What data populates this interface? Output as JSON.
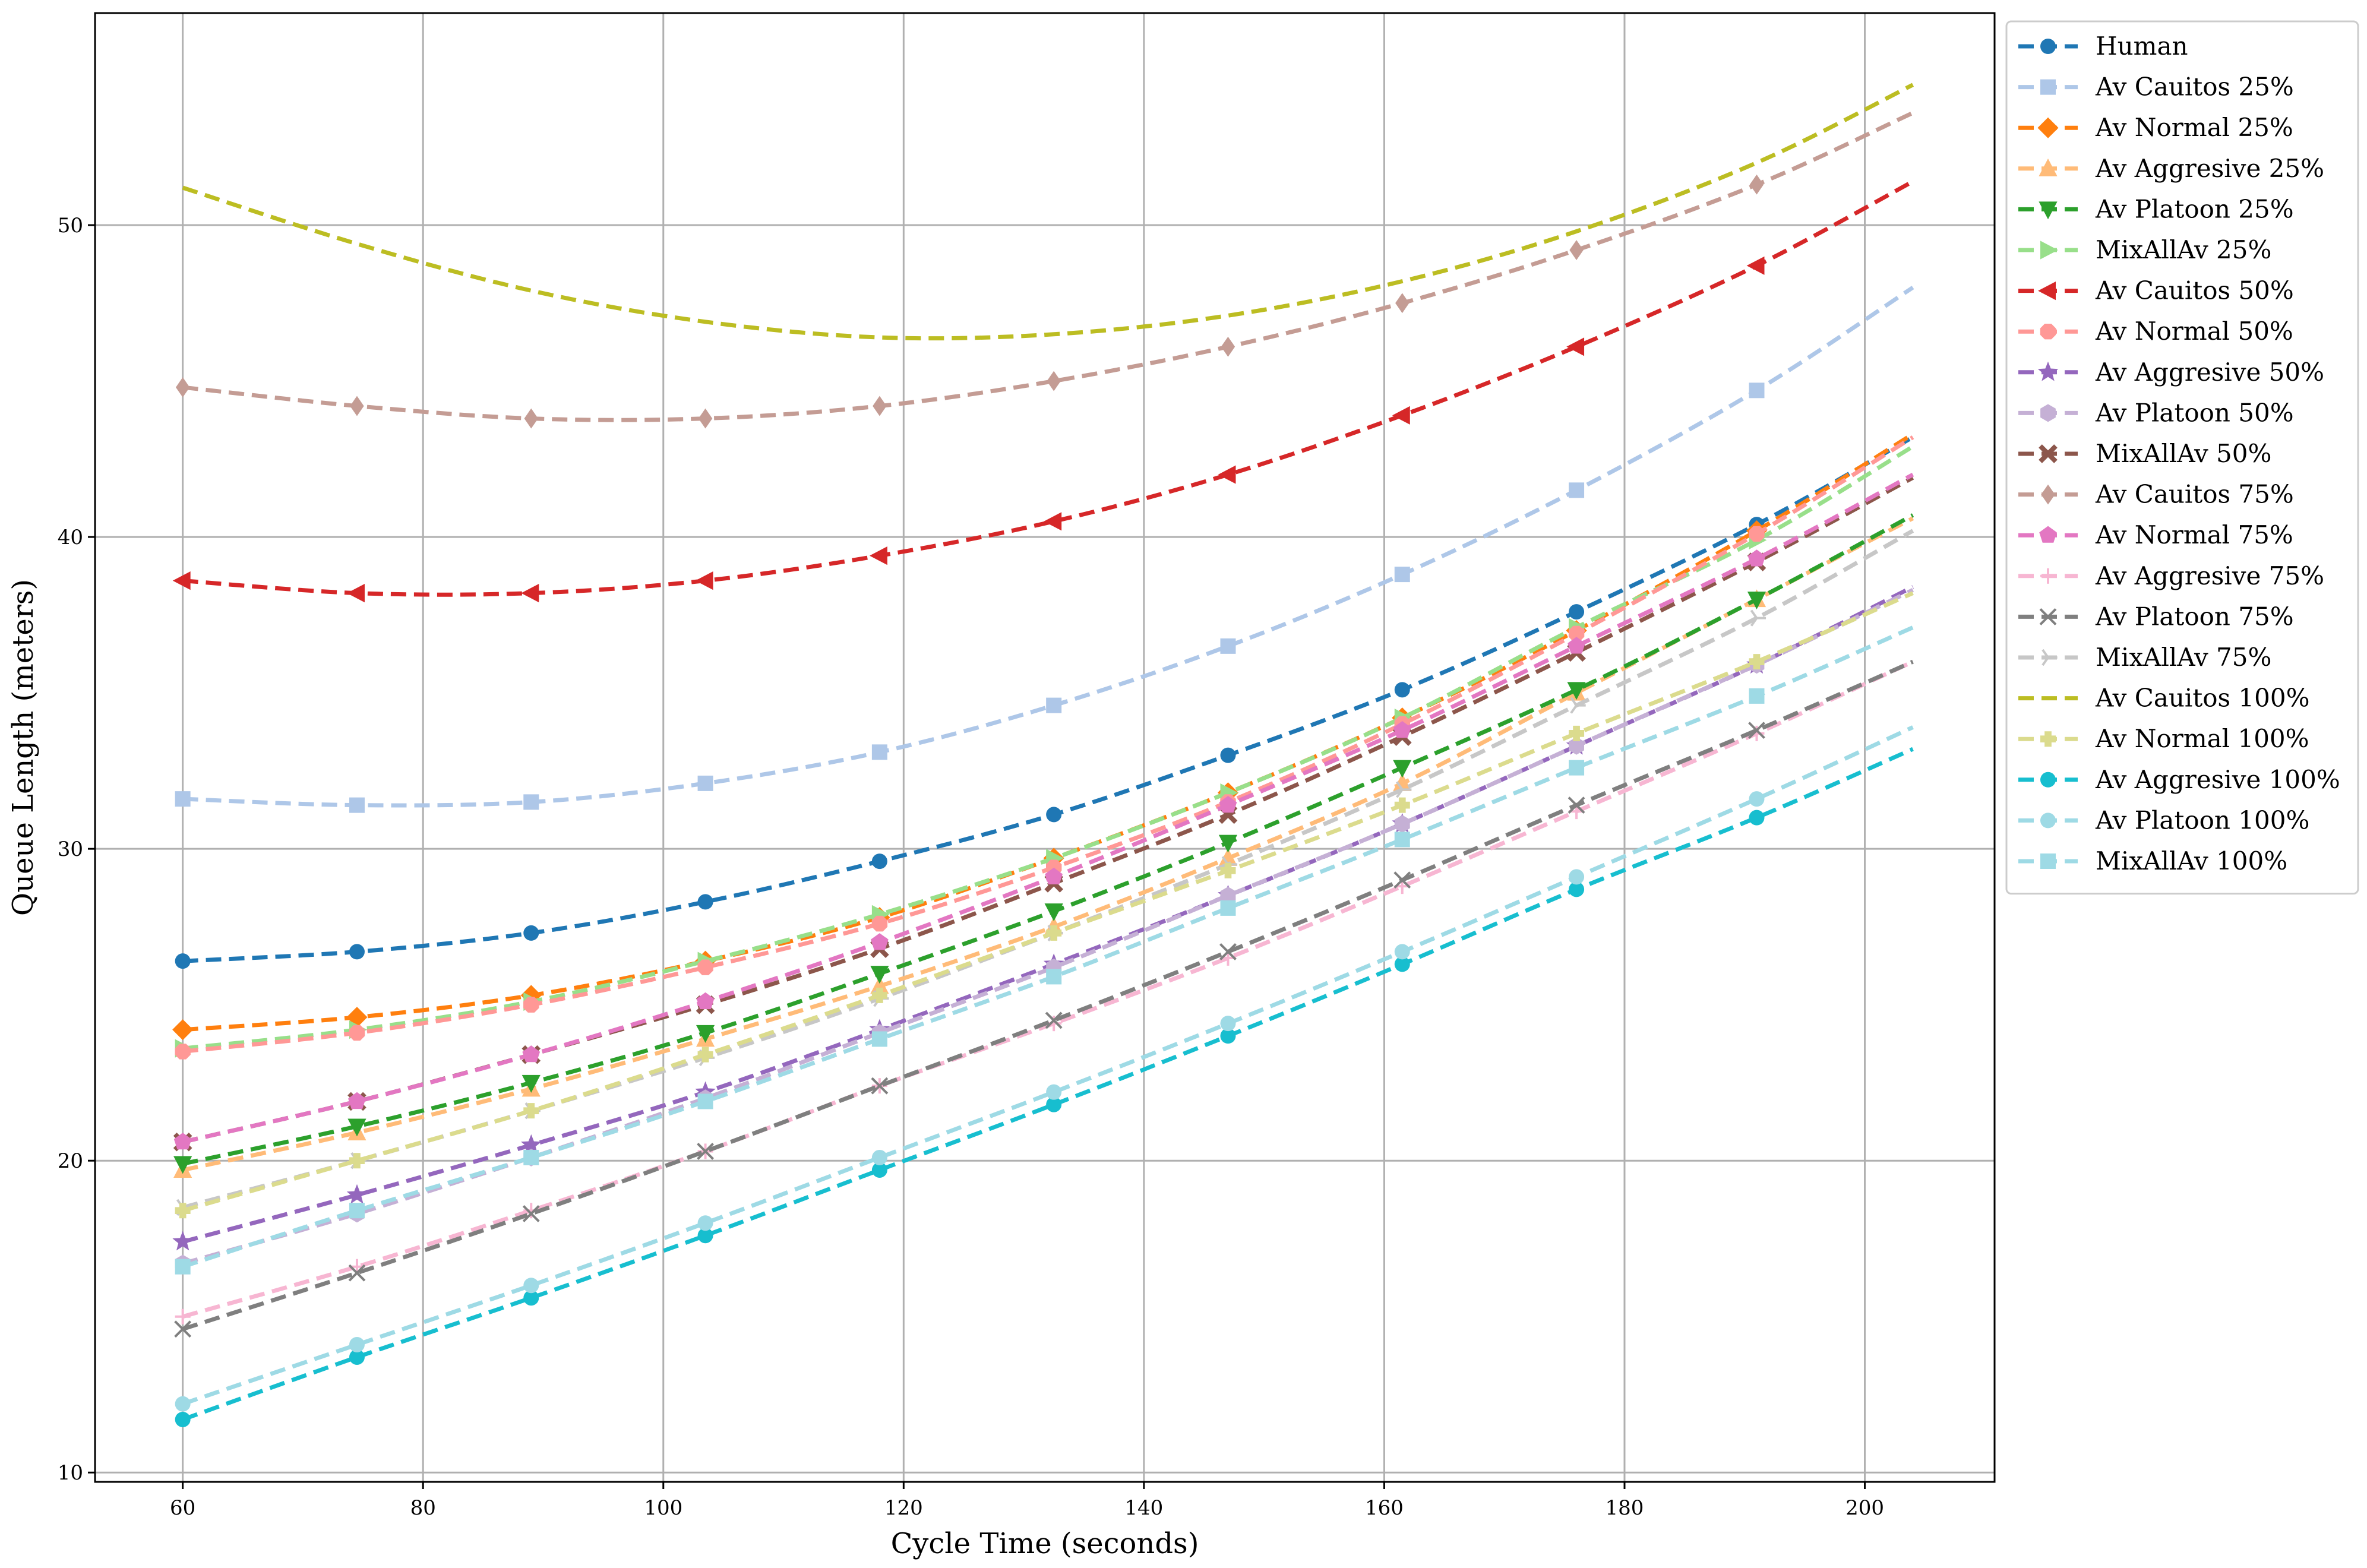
{
  "chart_data": {
    "type": "line",
    "xlabel": "Cycle Time (seconds)",
    "ylabel": "Queue Length (meters)",
    "xlim": [
      52.7,
      210.8
    ],
    "ylim": [
      9.7,
      56.8
    ],
    "xticks": [
      60,
      80,
      100,
      120,
      140,
      160,
      180,
      200
    ],
    "yticks": [
      10,
      20,
      30,
      40,
      50
    ],
    "grid": true,
    "legend_position": "outside-right",
    "x": [
      60,
      74.5,
      89,
      103.5,
      118,
      132.5,
      147,
      161.5,
      176,
      191,
      204
    ],
    "series": [
      {
        "name": "Human",
        "color": "#1f77b4",
        "marker": "circle",
        "values": [
          26.4,
          26.7,
          27.3,
          28.3,
          29.6,
          31.1,
          33.0,
          35.1,
          37.6,
          40.4,
          43.2
        ]
      },
      {
        "name": "Av Cauitos 25%",
        "color": "#aec7e8",
        "marker": "square",
        "values": [
          31.6,
          31.4,
          31.5,
          32.1,
          33.1,
          34.6,
          36.5,
          38.8,
          41.5,
          44.7,
          48.0
        ]
      },
      {
        "name": "Av Normal 25%",
        "color": "#ff7f0e",
        "marker": "diamond",
        "values": [
          24.2,
          24.6,
          25.3,
          26.4,
          27.8,
          29.7,
          31.8,
          34.2,
          37.0,
          40.2,
          43.3
        ]
      },
      {
        "name": "Av Aggresive 25%",
        "color": "#ffbb78",
        "marker": "triangle-up",
        "values": [
          19.7,
          20.9,
          22.3,
          23.9,
          25.6,
          27.5,
          29.7,
          32.1,
          35.0,
          38.0,
          40.6
        ]
      },
      {
        "name": "Av Platoon 25%",
        "color": "#2ca02c",
        "marker": "triangle-down",
        "values": [
          19.9,
          21.1,
          22.5,
          24.1,
          26.0,
          28.0,
          30.2,
          32.6,
          35.1,
          38.0,
          40.7
        ]
      },
      {
        "name": "MixAllAv 25%",
        "color": "#98df8a",
        "marker": "triangle-right",
        "values": [
          23.6,
          24.2,
          25.1,
          26.4,
          27.9,
          29.7,
          31.8,
          34.2,
          37.1,
          39.9,
          42.9
        ]
      },
      {
        "name": "Av Cauitos 50%",
        "color": "#d62728",
        "marker": "triangle-left",
        "values": [
          38.6,
          38.2,
          38.2,
          38.6,
          39.4,
          40.5,
          42.0,
          43.9,
          46.1,
          48.7,
          51.4
        ]
      },
      {
        "name": "Av Normal 50%",
        "color": "#ff9896",
        "marker": "octagon",
        "values": [
          23.5,
          24.1,
          25.0,
          26.2,
          27.6,
          29.4,
          31.5,
          34.0,
          36.9,
          40.1,
          43.2
        ]
      },
      {
        "name": "Av Aggresive 50%",
        "color": "#9467bd",
        "marker": "star",
        "values": [
          17.4,
          18.9,
          20.5,
          22.2,
          24.2,
          26.3,
          28.5,
          30.8,
          33.3,
          35.9,
          38.4
        ]
      },
      {
        "name": "Av Platoon 50%",
        "color": "#c5b0d5",
        "marker": "hexagon",
        "values": [
          16.7,
          18.3,
          20.1,
          22.0,
          24.1,
          26.2,
          28.5,
          30.8,
          33.3,
          35.9,
          38.3
        ]
      },
      {
        "name": "MixAllAv 50%",
        "color": "#8c564b",
        "marker": "x-filled",
        "values": [
          20.6,
          21.9,
          23.4,
          25.0,
          26.8,
          28.9,
          31.1,
          33.6,
          36.3,
          39.2,
          41.9
        ]
      },
      {
        "name": "Av Cauitos 75%",
        "color": "#c49c94",
        "marker": "thin-diamond",
        "values": [
          44.8,
          44.2,
          43.8,
          43.8,
          44.2,
          45.0,
          46.1,
          47.5,
          49.2,
          51.3,
          53.6
        ]
      },
      {
        "name": "Av Normal 75%",
        "color": "#e377c2",
        "marker": "pentagon",
        "values": [
          20.6,
          21.9,
          23.4,
          25.1,
          27.0,
          29.1,
          31.4,
          33.8,
          36.5,
          39.3,
          42.0
        ]
      },
      {
        "name": "Av Aggresive 75%",
        "color": "#f7b6d2",
        "marker": "plus",
        "values": [
          15.0,
          16.6,
          18.4,
          20.3,
          22.4,
          24.4,
          26.5,
          28.8,
          31.2,
          33.7,
          36.0
        ]
      },
      {
        "name": "Av Platoon 75%",
        "color": "#7f7f7f",
        "marker": "x",
        "values": [
          14.6,
          16.4,
          18.3,
          20.3,
          22.4,
          24.5,
          26.7,
          29.0,
          31.4,
          33.8,
          36.0
        ]
      },
      {
        "name": "MixAllAv 75%",
        "color": "#c7c7c7",
        "marker": "tri-right",
        "values": [
          18.5,
          20.0,
          21.6,
          23.3,
          25.2,
          27.3,
          29.5,
          31.9,
          34.6,
          37.4,
          40.2
        ]
      },
      {
        "name": "Av Cauitos 100%",
        "color": "#bcbd22",
        "marker": "none",
        "values": [
          51.2,
          49.4,
          47.9,
          46.9,
          46.4,
          46.5,
          47.1,
          48.2,
          49.8,
          52.0,
          54.5
        ]
      },
      {
        "name": "Av Normal 100%",
        "color": "#dbdb8d",
        "marker": "plus-filled",
        "values": [
          18.4,
          20.0,
          21.6,
          23.4,
          25.3,
          27.3,
          29.3,
          31.4,
          33.7,
          36.0,
          38.2
        ]
      },
      {
        "name": "Av Aggresive 100%",
        "color": "#17becf",
        "marker": "circle",
        "values": [
          11.7,
          13.7,
          15.6,
          17.6,
          19.7,
          21.8,
          24.0,
          26.3,
          28.7,
          31.0,
          33.2
        ]
      },
      {
        "name": "Av Platoon 100%",
        "color": "#9edae5",
        "marker": "circle",
        "values": [
          12.2,
          14.1,
          16.0,
          18.0,
          20.1,
          22.2,
          24.4,
          26.7,
          29.1,
          31.6,
          33.9
        ]
      },
      {
        "name": "MixAllAv 100%",
        "color": "#9edae5",
        "marker": "square",
        "values": [
          16.6,
          18.4,
          20.1,
          21.9,
          23.9,
          25.9,
          28.1,
          30.3,
          32.6,
          34.9,
          37.1
        ]
      }
    ]
  }
}
